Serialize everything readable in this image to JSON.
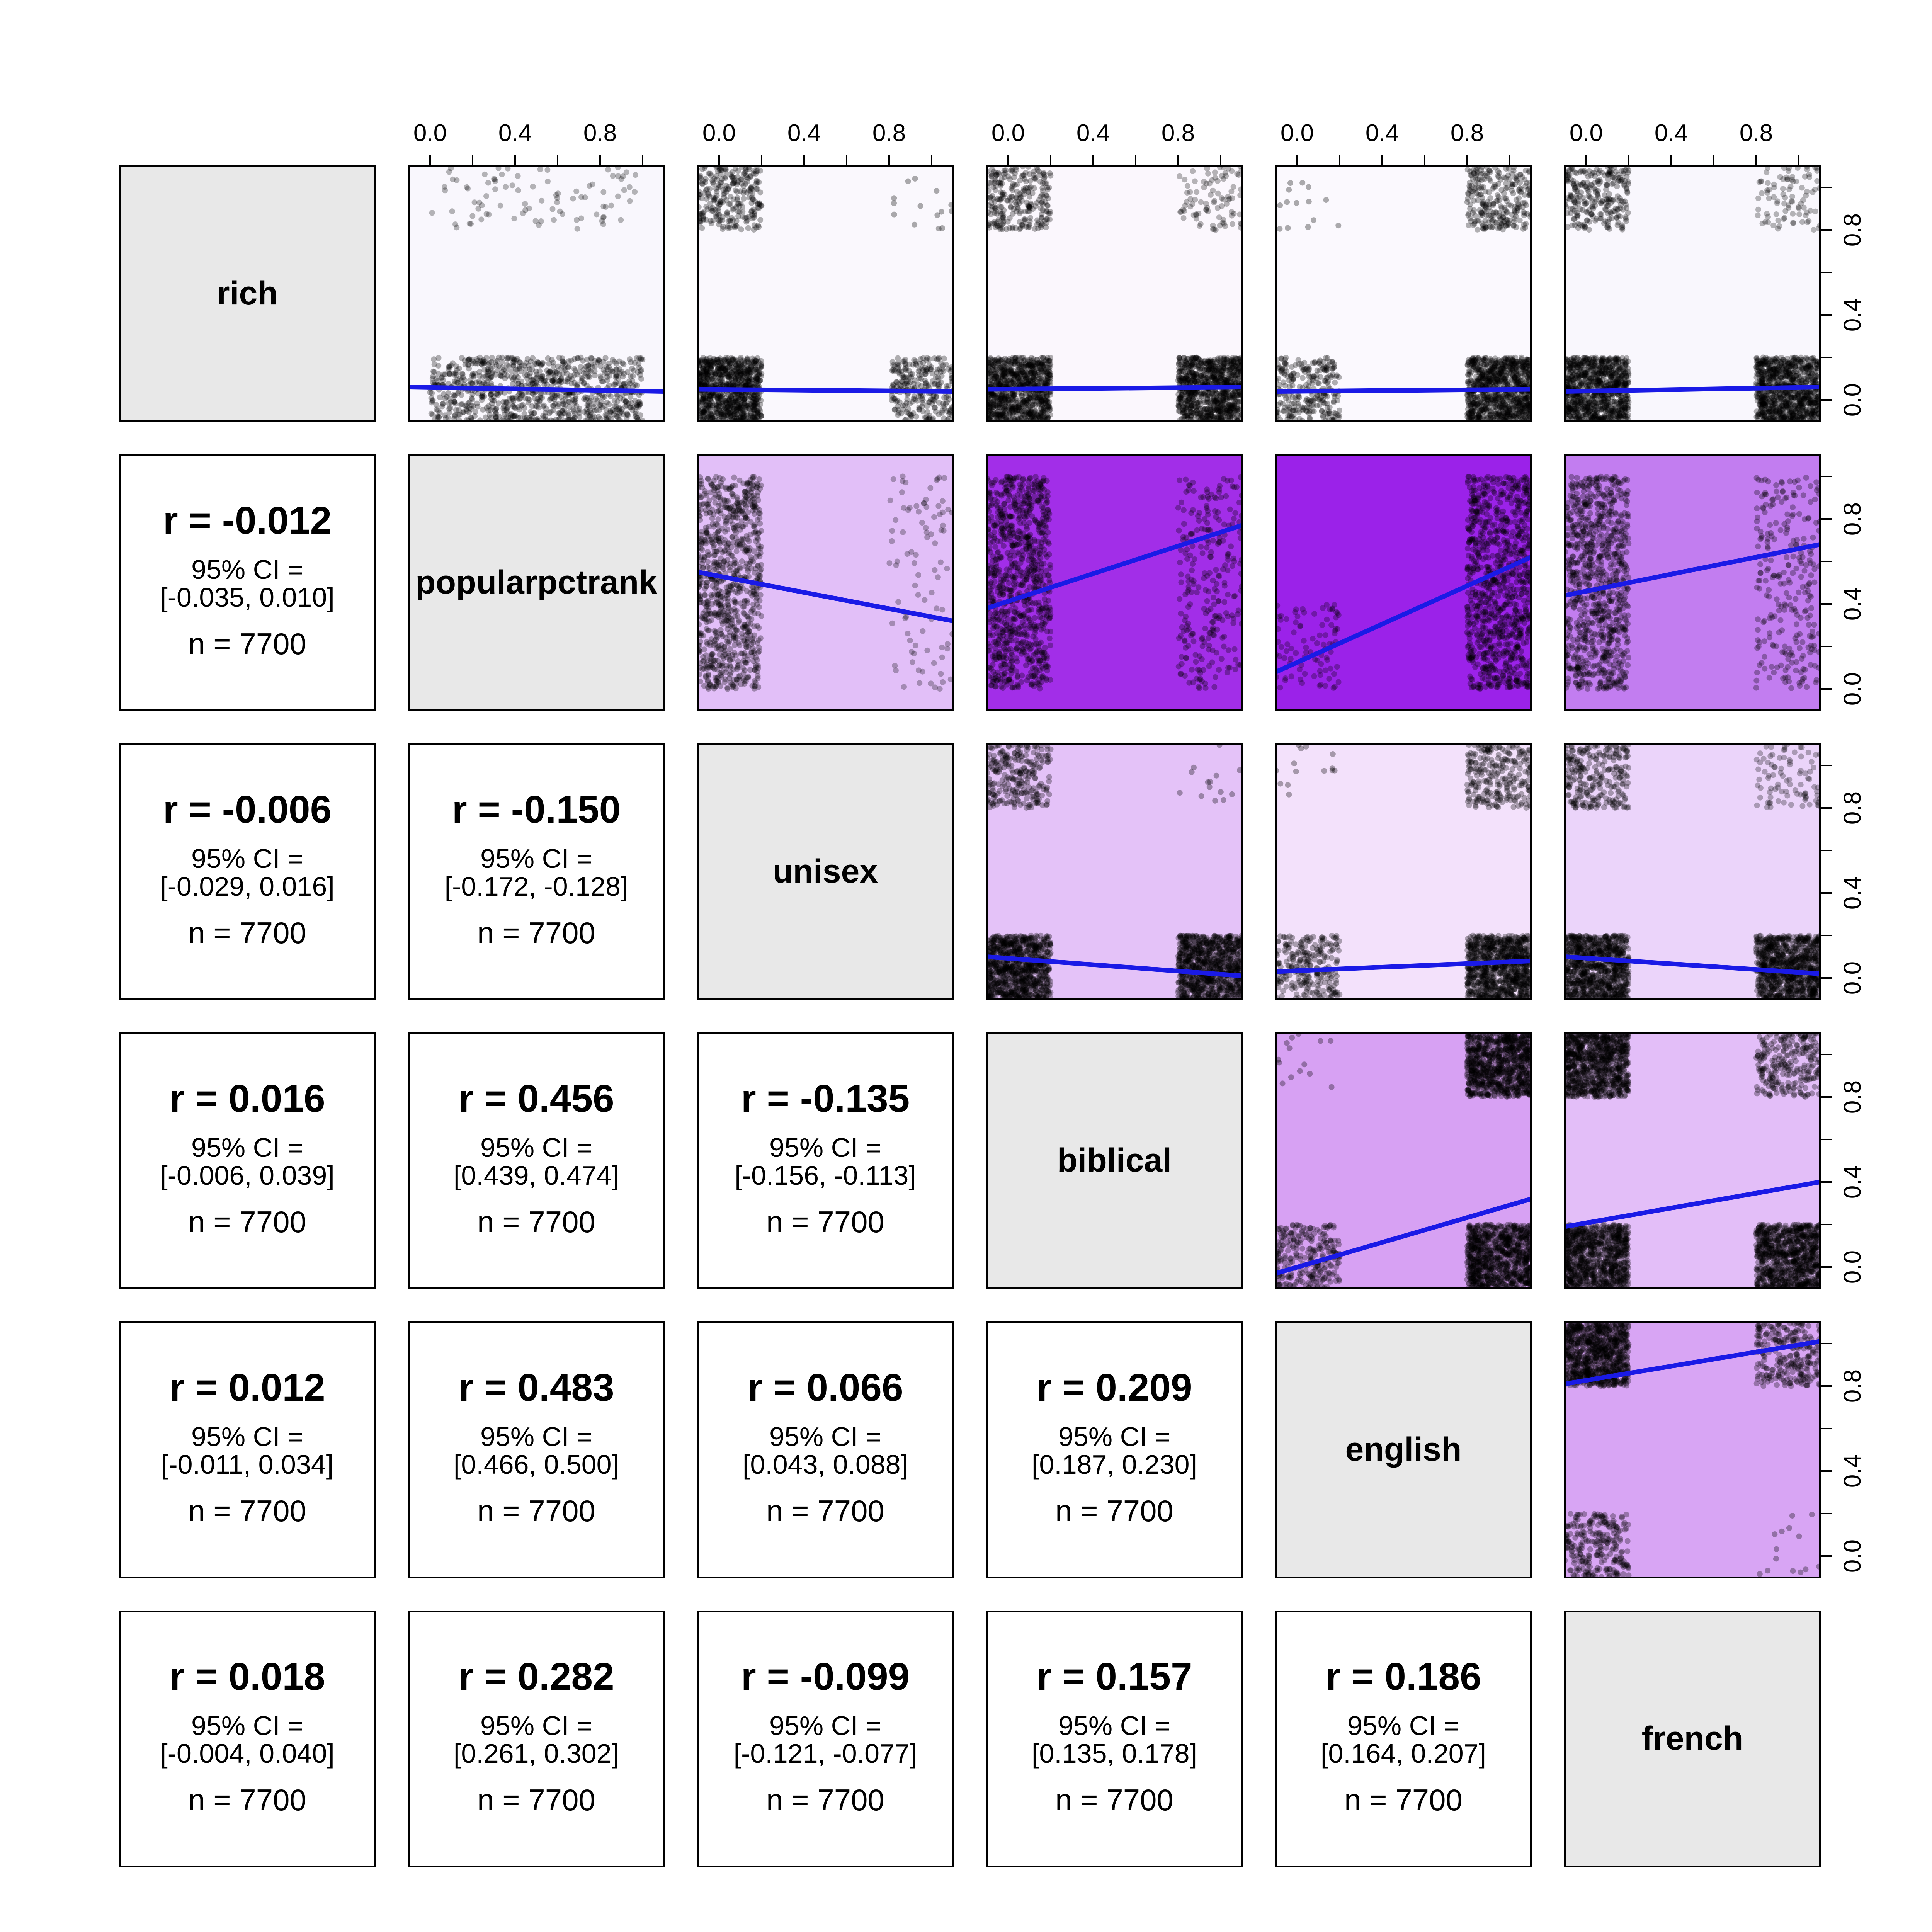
{
  "chart_data": {
    "type": "scatter",
    "title": "",
    "variables": [
      "rich",
      "popularpctrank",
      "unisex",
      "biblical",
      "english",
      "french"
    ],
    "tick_labels": [
      "0.0",
      "0.4",
      "0.8"
    ],
    "ci_label": "95% CI =",
    "axis_range": [
      -0.1,
      1.1
    ],
    "colors": {
      "diag_fill": "#e8e8e8",
      "fit_line": "#1a1ae6",
      "points": "#000000",
      "upper_fill": {
        "0-1": "#f9f7fd",
        "0-2": "#faf8fd",
        "0-3": "#fbf7fd",
        "0-4": "#fbf9fe",
        "0-5": "#f9f7fd",
        "1-2": "#e2bff8",
        "1-3": "#a22ee8",
        "1-4": "#9b22e9",
        "1-5": "#c27df0",
        "2-3": "#e4c2f8",
        "2-4": "#f3e1fb",
        "2-5": "#ebd4fa",
        "3-4": "#d7a1f3",
        "3-5": "#e3bef8",
        "4-5": "#d8a5f4"
      }
    },
    "pairs": [
      {
        "row": 1,
        "col": 0,
        "r": "r = -0.012",
        "ci": "[-0.035, 0.010]",
        "n": "n = 7700"
      },
      {
        "row": 2,
        "col": 0,
        "r": "r = -0.006",
        "ci": "[-0.029, 0.016]",
        "n": "n = 7700"
      },
      {
        "row": 2,
        "col": 1,
        "r": "r = -0.150",
        "ci": "[-0.172, -0.128]",
        "n": "n = 7700"
      },
      {
        "row": 3,
        "col": 0,
        "r": "r = 0.016",
        "ci": "[-0.006, 0.039]",
        "n": "n = 7700"
      },
      {
        "row": 3,
        "col": 1,
        "r": "r = 0.456",
        "ci": "[0.439, 0.474]",
        "n": "n = 7700"
      },
      {
        "row": 3,
        "col": 2,
        "r": "r = -0.135",
        "ci": "[-0.156, -0.113]",
        "n": "n = 7700"
      },
      {
        "row": 4,
        "col": 0,
        "r": "r = 0.012",
        "ci": "[-0.011, 0.034]",
        "n": "n = 7700"
      },
      {
        "row": 4,
        "col": 1,
        "r": "r = 0.483",
        "ci": "[0.466, 0.500]",
        "n": "n = 7700"
      },
      {
        "row": 4,
        "col": 2,
        "r": "r = 0.066",
        "ci": "[0.043, 0.088]",
        "n": "n = 7700"
      },
      {
        "row": 4,
        "col": 3,
        "r": "r = 0.209",
        "ci": "[0.187, 0.230]",
        "n": "n = 7700"
      },
      {
        "row": 5,
        "col": 0,
        "r": "r = 0.018",
        "ci": "[-0.004, 0.040]",
        "n": "n = 7700"
      },
      {
        "row": 5,
        "col": 1,
        "r": "r = 0.282",
        "ci": "[0.261, 0.302]",
        "n": "n = 7700"
      },
      {
        "row": 5,
        "col": 2,
        "r": "r = -0.099",
        "ci": "[-0.121, -0.077]",
        "n": "n = 7700"
      },
      {
        "row": 5,
        "col": 3,
        "r": "r = 0.157",
        "ci": "[0.135, 0.178]",
        "n": "n = 7700"
      },
      {
        "row": 5,
        "col": 4,
        "r": "r = 0.186",
        "ci": "[0.164, 0.207]",
        "n": "n = 7700"
      }
    ],
    "fit_lines": [
      {
        "row": 0,
        "col": 1,
        "x": [
          -0.1,
          1.1
        ],
        "y": [
          0.06,
          0.04
        ]
      },
      {
        "row": 0,
        "col": 2,
        "x": [
          -0.1,
          1.1
        ],
        "y": [
          0.05,
          0.04
        ]
      },
      {
        "row": 0,
        "col": 3,
        "x": [
          -0.1,
          1.1
        ],
        "y": [
          0.05,
          0.06
        ]
      },
      {
        "row": 0,
        "col": 4,
        "x": [
          -0.1,
          1.1
        ],
        "y": [
          0.04,
          0.05
        ]
      },
      {
        "row": 0,
        "col": 5,
        "x": [
          -0.1,
          1.1
        ],
        "y": [
          0.04,
          0.06
        ]
      },
      {
        "row": 1,
        "col": 2,
        "x": [
          -0.1,
          1.1
        ],
        "y": [
          0.55,
          0.32
        ]
      },
      {
        "row": 1,
        "col": 3,
        "x": [
          -0.1,
          1.1
        ],
        "y": [
          0.38,
          0.77
        ]
      },
      {
        "row": 1,
        "col": 4,
        "x": [
          -0.1,
          1.1
        ],
        "y": [
          0.08,
          0.62
        ]
      },
      {
        "row": 1,
        "col": 5,
        "x": [
          -0.1,
          1.1
        ],
        "y": [
          0.44,
          0.68
        ]
      },
      {
        "row": 2,
        "col": 3,
        "x": [
          -0.1,
          1.1
        ],
        "y": [
          0.1,
          0.01
        ]
      },
      {
        "row": 2,
        "col": 4,
        "x": [
          -0.1,
          1.1
        ],
        "y": [
          0.03,
          0.08
        ]
      },
      {
        "row": 2,
        "col": 5,
        "x": [
          -0.1,
          1.1
        ],
        "y": [
          0.1,
          0.02
        ]
      },
      {
        "row": 3,
        "col": 4,
        "x": [
          -0.1,
          1.1
        ],
        "y": [
          -0.03,
          0.32
        ]
      },
      {
        "row": 3,
        "col": 5,
        "x": [
          -0.1,
          1.1
        ],
        "y": [
          0.19,
          0.4
        ]
      },
      {
        "row": 4,
        "col": 5,
        "x": [
          -0.1,
          1.1
        ],
        "y": [
          0.81,
          1.01
        ]
      }
    ],
    "point_clusters": [
      {
        "row": 0,
        "col": 1,
        "clusters": [
          {
            "x": [
              0.0,
              1.0
            ],
            "y": [
              -0.1,
              0.2
            ],
            "density": "high"
          },
          {
            "x": [
              0.0,
              1.0
            ],
            "y": [
              0.8,
              1.1
            ],
            "density": "low"
          }
        ]
      },
      {
        "row": 0,
        "col": 2,
        "clusters": [
          {
            "x": [
              -0.1,
              0.2
            ],
            "y": [
              -0.1,
              0.2
            ],
            "density": "high"
          },
          {
            "x": [
              -0.1,
              0.2
            ],
            "y": [
              0.8,
              1.1
            ],
            "density": "medium"
          },
          {
            "x": [
              0.8,
              1.1
            ],
            "y": [
              -0.1,
              0.2
            ],
            "density": "medium"
          },
          {
            "x": [
              0.8,
              1.1
            ],
            "y": [
              0.8,
              1.1
            ],
            "density": "sparse"
          }
        ]
      },
      {
        "row": 0,
        "col": 3,
        "clusters": [
          {
            "x": [
              -0.1,
              0.2
            ],
            "y": [
              -0.1,
              0.2
            ],
            "density": "high"
          },
          {
            "x": [
              -0.1,
              0.2
            ],
            "y": [
              0.8,
              1.1
            ],
            "density": "medium"
          },
          {
            "x": [
              0.8,
              1.1
            ],
            "y": [
              -0.1,
              0.2
            ],
            "density": "high"
          },
          {
            "x": [
              0.8,
              1.1
            ],
            "y": [
              0.8,
              1.1
            ],
            "density": "low"
          }
        ]
      },
      {
        "row": 0,
        "col": 4,
        "clusters": [
          {
            "x": [
              -0.1,
              0.2
            ],
            "y": [
              -0.1,
              0.2
            ],
            "density": "medium"
          },
          {
            "x": [
              -0.1,
              0.2
            ],
            "y": [
              0.8,
              1.1
            ],
            "density": "sparse"
          },
          {
            "x": [
              0.8,
              1.1
            ],
            "y": [
              -0.1,
              0.2
            ],
            "density": "high"
          },
          {
            "x": [
              0.8,
              1.1
            ],
            "y": [
              0.8,
              1.1
            ],
            "density": "medium"
          }
        ]
      },
      {
        "row": 0,
        "col": 5,
        "clusters": [
          {
            "x": [
              -0.1,
              0.2
            ],
            "y": [
              -0.1,
              0.2
            ],
            "density": "high"
          },
          {
            "x": [
              -0.1,
              0.2
            ],
            "y": [
              0.8,
              1.1
            ],
            "density": "medium"
          },
          {
            "x": [
              0.8,
              1.1
            ],
            "y": [
              -0.1,
              0.2
            ],
            "density": "high"
          },
          {
            "x": [
              0.8,
              1.1
            ],
            "y": [
              0.8,
              1.1
            ],
            "density": "low"
          }
        ]
      },
      {
        "row": 1,
        "col": 2,
        "clusters": [
          {
            "x": [
              -0.1,
              0.2
            ],
            "y": [
              0.0,
              1.0
            ],
            "density": "high"
          },
          {
            "x": [
              0.8,
              1.1
            ],
            "y": [
              0.0,
              1.0
            ],
            "density": "low"
          }
        ]
      },
      {
        "row": 1,
        "col": 3,
        "clusters": [
          {
            "x": [
              -0.1,
              0.2
            ],
            "y": [
              0.0,
              1.0
            ],
            "density": "high"
          },
          {
            "x": [
              0.8,
              1.1
            ],
            "y": [
              0.0,
              1.0
            ],
            "density": "medium"
          }
        ]
      },
      {
        "row": 1,
        "col": 4,
        "clusters": [
          {
            "x": [
              -0.1,
              0.2
            ],
            "y": [
              0.0,
              0.4
            ],
            "density": "low"
          },
          {
            "x": [
              0.8,
              1.1
            ],
            "y": [
              0.0,
              1.0
            ],
            "density": "high"
          }
        ]
      },
      {
        "row": 1,
        "col": 5,
        "clusters": [
          {
            "x": [
              -0.1,
              0.2
            ],
            "y": [
              0.0,
              1.0
            ],
            "density": "high"
          },
          {
            "x": [
              0.8,
              1.1
            ],
            "y": [
              0.0,
              1.0
            ],
            "density": "medium"
          }
        ]
      },
      {
        "row": 2,
        "col": 3,
        "clusters": [
          {
            "x": [
              -0.1,
              0.2
            ],
            "y": [
              -0.1,
              0.2
            ],
            "density": "high"
          },
          {
            "x": [
              -0.1,
              0.2
            ],
            "y": [
              0.8,
              1.1
            ],
            "density": "medium"
          },
          {
            "x": [
              0.8,
              1.1
            ],
            "y": [
              -0.1,
              0.2
            ],
            "density": "high"
          },
          {
            "x": [
              0.8,
              1.1
            ],
            "y": [
              0.8,
              1.1
            ],
            "density": "sparse"
          }
        ]
      },
      {
        "row": 2,
        "col": 4,
        "clusters": [
          {
            "x": [
              -0.1,
              0.2
            ],
            "y": [
              -0.1,
              0.2
            ],
            "density": "medium"
          },
          {
            "x": [
              -0.1,
              0.2
            ],
            "y": [
              0.8,
              1.1
            ],
            "density": "sparse"
          },
          {
            "x": [
              0.8,
              1.1
            ],
            "y": [
              -0.1,
              0.2
            ],
            "density": "high"
          },
          {
            "x": [
              0.8,
              1.1
            ],
            "y": [
              0.8,
              1.1
            ],
            "density": "medium"
          }
        ]
      },
      {
        "row": 2,
        "col": 5,
        "clusters": [
          {
            "x": [
              -0.1,
              0.2
            ],
            "y": [
              -0.1,
              0.2
            ],
            "density": "high"
          },
          {
            "x": [
              -0.1,
              0.2
            ],
            "y": [
              0.8,
              1.1
            ],
            "density": "medium"
          },
          {
            "x": [
              0.8,
              1.1
            ],
            "y": [
              -0.1,
              0.2
            ],
            "density": "high"
          },
          {
            "x": [
              0.8,
              1.1
            ],
            "y": [
              0.8,
              1.1
            ],
            "density": "low"
          }
        ]
      },
      {
        "row": 3,
        "col": 4,
        "clusters": [
          {
            "x": [
              -0.1,
              0.2
            ],
            "y": [
              -0.1,
              0.2
            ],
            "density": "medium"
          },
          {
            "x": [
              -0.1,
              0.2
            ],
            "y": [
              0.8,
              1.1
            ],
            "density": "sparse"
          },
          {
            "x": [
              0.8,
              1.1
            ],
            "y": [
              -0.1,
              0.2
            ],
            "density": "high"
          },
          {
            "x": [
              0.8,
              1.1
            ],
            "y": [
              0.8,
              1.1
            ],
            "density": "high"
          }
        ]
      },
      {
        "row": 3,
        "col": 5,
        "clusters": [
          {
            "x": [
              -0.1,
              0.2
            ],
            "y": [
              -0.1,
              0.2
            ],
            "density": "high"
          },
          {
            "x": [
              -0.1,
              0.2
            ],
            "y": [
              0.8,
              1.1
            ],
            "density": "high"
          },
          {
            "x": [
              0.8,
              1.1
            ],
            "y": [
              -0.1,
              0.2
            ],
            "density": "high"
          },
          {
            "x": [
              0.8,
              1.1
            ],
            "y": [
              0.8,
              1.1
            ],
            "density": "medium"
          }
        ]
      },
      {
        "row": 4,
        "col": 5,
        "clusters": [
          {
            "x": [
              -0.1,
              0.2
            ],
            "y": [
              -0.1,
              0.2
            ],
            "density": "medium"
          },
          {
            "x": [
              -0.1,
              0.2
            ],
            "y": [
              0.8,
              1.1
            ],
            "density": "high"
          },
          {
            "x": [
              0.8,
              1.1
            ],
            "y": [
              -0.1,
              0.2
            ],
            "density": "sparse"
          },
          {
            "x": [
              0.8,
              1.1
            ],
            "y": [
              0.8,
              1.1
            ],
            "density": "medium"
          }
        ]
      }
    ]
  }
}
